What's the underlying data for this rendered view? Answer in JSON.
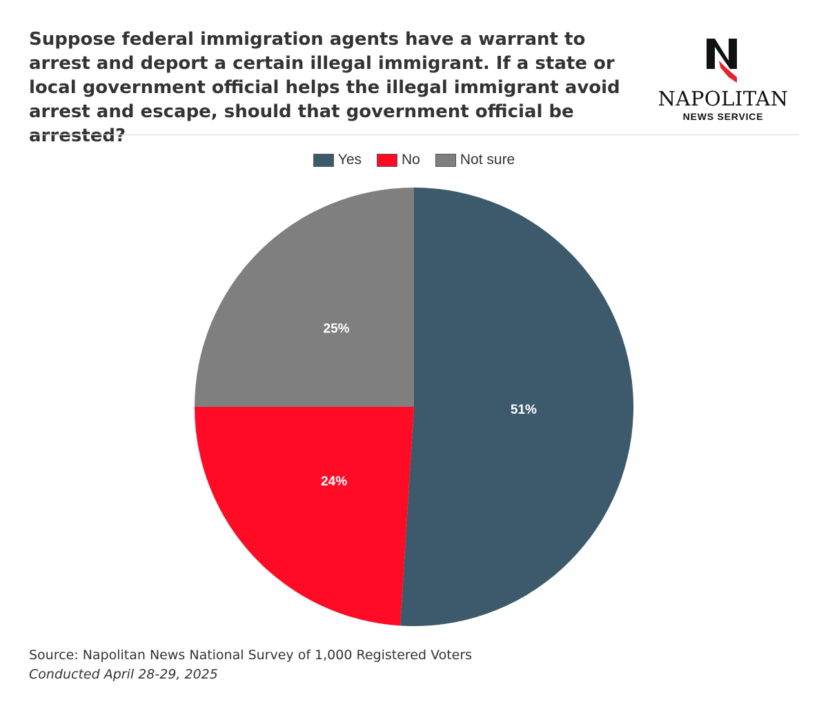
{
  "title": "Suppose federal immigration agents have a warrant to arrest and deport a certain illegal immigrant. If a state or local government official helps the illegal immigrant avoid arrest and escape, should that government official be arrested?",
  "logo": {
    "letter": "N",
    "name": "NAPOLITAN",
    "subtitle": "NEWS SERVICE",
    "accent_color": "#e3242b"
  },
  "chart_data": {
    "type": "pie",
    "title": "Suppose federal immigration agents have a warrant to arrest and deport a certain illegal immigrant. If a state or local government official helps the illegal immigrant avoid arrest and escape, should that government official be arrested?",
    "categories": [
      "Yes",
      "No",
      "Not sure"
    ],
    "values": [
      51,
      24,
      25
    ],
    "labels": [
      "51%",
      "24%",
      "25%"
    ],
    "colors": [
      "#3d5a6c",
      "#ff0b25",
      "#7f7f7f"
    ],
    "legend_position": "top-center",
    "start_angle": "12 o'clock",
    "direction": "clockwise"
  },
  "footer": {
    "source": "Source: Napolitan News National Survey of 1,000 Registered Voters",
    "conducted": "Conducted April 28-29, 2025"
  }
}
